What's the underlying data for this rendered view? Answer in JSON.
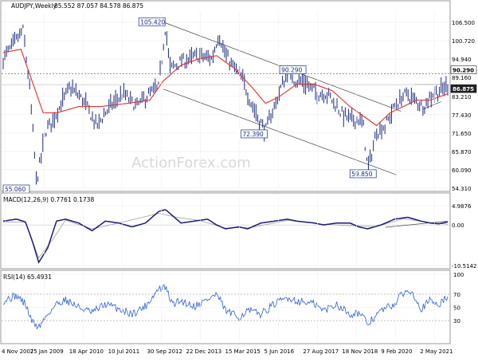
{
  "chart_data": [
    {
      "type": "candlestick",
      "title": "AUDJPY,Weekly",
      "ohlc": "85.552 87.057 84.578 86.875",
      "watermark": "ActionForex.com",
      "ylim": [
        54.31,
        110.0
      ],
      "yticks": [
        "106.500",
        "100.720",
        "94.940",
        "89.160",
        "83.210",
        "77.430",
        "71.650",
        "65.870",
        "60.090",
        "54.310"
      ],
      "xticks": [
        "4 Nov 2007",
        "25 Jan 2009",
        "18 Apr 2010",
        "10 Jul 2011",
        "30 Sep 2012",
        "22 Dec 2013",
        "15 Mar 2015",
        "5 Jun 2016",
        "27 Aug 2017",
        "18 Nov 2018",
        "9 Feb 2020",
        "2 May 2021"
      ],
      "price_path": [
        [
          0,
          95
        ],
        [
          0.025,
          100
        ],
        [
          0.045,
          104
        ],
        [
          0.06,
          85
        ],
        [
          0.075,
          56
        ],
        [
          0.095,
          72
        ],
        [
          0.12,
          78
        ],
        [
          0.15,
          86
        ],
        [
          0.18,
          82
        ],
        [
          0.21,
          74
        ],
        [
          0.24,
          80
        ],
        [
          0.27,
          84
        ],
        [
          0.3,
          80
        ],
        [
          0.33,
          84
        ],
        [
          0.35,
          86
        ],
        [
          0.365,
          105.4
        ],
        [
          0.375,
          92
        ],
        [
          0.4,
          94
        ],
        [
          0.44,
          96
        ],
        [
          0.47,
          95
        ],
        [
          0.485,
          103
        ],
        [
          0.5,
          96
        ],
        [
          0.52,
          92
        ],
        [
          0.54,
          88
        ],
        [
          0.555,
          82
        ],
        [
          0.575,
          76
        ],
        [
          0.59,
          72.4
        ],
        [
          0.61,
          80
        ],
        [
          0.625,
          86
        ],
        [
          0.64,
          90.3
        ],
        [
          0.66,
          88
        ],
        [
          0.675,
          88
        ],
        [
          0.69,
          86
        ],
        [
          0.71,
          84
        ],
        [
          0.73,
          84
        ],
        [
          0.76,
          78
        ],
        [
          0.78,
          76
        ],
        [
          0.8,
          76
        ],
        [
          0.81,
          74
        ],
        [
          0.82,
          59.85
        ],
        [
          0.84,
          72
        ],
        [
          0.86,
          74
        ],
        [
          0.88,
          80
        ],
        [
          0.905,
          84
        ],
        [
          0.925,
          82
        ],
        [
          0.945,
          80
        ],
        [
          0.965,
          84
        ],
        [
          0.985,
          85
        ],
        [
          1.0,
          86.875
        ]
      ],
      "ma_path": [
        [
          0,
          97
        ],
        [
          0.04,
          98
        ],
        [
          0.06,
          90
        ],
        [
          0.09,
          78
        ],
        [
          0.12,
          78
        ],
        [
          0.17,
          80
        ],
        [
          0.22,
          80
        ],
        [
          0.28,
          81
        ],
        [
          0.33,
          82
        ],
        [
          0.36,
          88
        ],
        [
          0.4,
          93
        ],
        [
          0.44,
          95
        ],
        [
          0.48,
          96
        ],
        [
          0.52,
          92
        ],
        [
          0.56,
          86
        ],
        [
          0.59,
          81
        ],
        [
          0.62,
          83
        ],
        [
          0.66,
          87
        ],
        [
          0.7,
          87
        ],
        [
          0.74,
          85
        ],
        [
          0.78,
          80
        ],
        [
          0.81,
          77
        ],
        [
          0.84,
          74
        ],
        [
          0.87,
          78
        ],
        [
          0.9,
          80
        ],
        [
          0.93,
          82
        ],
        [
          0.96,
          82
        ],
        [
          1.0,
          84
        ]
      ],
      "annotations": [
        "105.420",
        "90.290",
        "72.390",
        "59.850",
        "55.060"
      ],
      "price_tags": [
        {
          "label": "90.290",
          "value": 90.29,
          "dashed": true
        },
        {
          "label": "86.875",
          "value": 86.875,
          "dashed": false
        }
      ]
    },
    {
      "type": "line",
      "title": "MACD(12,26,9) 0.7761 0.1738",
      "ylim": [
        -10.5142,
        4.9876
      ],
      "yticks": [
        "4.9876",
        "0.00",
        "-10.5142"
      ],
      "macd_path": [
        [
          0,
          1.0
        ],
        [
          0.03,
          1.5
        ],
        [
          0.05,
          0.8
        ],
        [
          0.065,
          -4
        ],
        [
          0.08,
          -9.7
        ],
        [
          0.1,
          -6
        ],
        [
          0.12,
          1
        ],
        [
          0.14,
          1.5
        ],
        [
          0.17,
          0.5
        ],
        [
          0.2,
          -1.5
        ],
        [
          0.23,
          1
        ],
        [
          0.26,
          0.5
        ],
        [
          0.29,
          -0.5
        ],
        [
          0.32,
          0.5
        ],
        [
          0.35,
          3.5
        ],
        [
          0.365,
          4.0
        ],
        [
          0.38,
          2.5
        ],
        [
          0.4,
          0.5
        ],
        [
          0.43,
          1
        ],
        [
          0.46,
          1.5
        ],
        [
          0.48,
          0
        ],
        [
          0.5,
          -1
        ],
        [
          0.53,
          -0.5
        ],
        [
          0.55,
          -1
        ],
        [
          0.58,
          0.5
        ],
        [
          0.61,
          1
        ],
        [
          0.64,
          1.5
        ],
        [
          0.66,
          1
        ],
        [
          0.7,
          0.5
        ],
        [
          0.72,
          0
        ],
        [
          0.75,
          0.5
        ],
        [
          0.78,
          0.5
        ],
        [
          0.8,
          -0.5
        ],
        [
          0.82,
          -1
        ],
        [
          0.85,
          0
        ],
        [
          0.88,
          1.5
        ],
        [
          0.91,
          2
        ],
        [
          0.94,
          1
        ],
        [
          0.96,
          0.5
        ],
        [
          0.98,
          0.3
        ],
        [
          1.0,
          0.7761
        ]
      ],
      "signal_path": [
        [
          0,
          0.8
        ],
        [
          0.05,
          0.7
        ],
        [
          0.08,
          -8.5
        ],
        [
          0.11,
          -4
        ],
        [
          0.14,
          1.2
        ],
        [
          0.2,
          -1
        ],
        [
          0.26,
          0.5
        ],
        [
          0.35,
          3
        ],
        [
          0.39,
          2
        ],
        [
          0.44,
          1.2
        ],
        [
          0.5,
          -0.8
        ],
        [
          0.56,
          -0.6
        ],
        [
          0.64,
          1.2
        ],
        [
          0.72,
          0.2
        ],
        [
          0.8,
          -0.3
        ],
        [
          0.84,
          -0.4
        ],
        [
          0.9,
          1.6
        ],
        [
          0.95,
          0.8
        ],
        [
          1.0,
          0.1738
        ]
      ]
    },
    {
      "type": "line",
      "title": "RSI(14) 65.4931",
      "ylim": [
        0,
        100
      ],
      "yticks": [
        "100",
        "70",
        "50",
        "30"
      ],
      "rsi_path": [
        [
          0,
          60
        ],
        [
          0.03,
          68
        ],
        [
          0.05,
          55
        ],
        [
          0.065,
          28
        ],
        [
          0.08,
          20
        ],
        [
          0.1,
          40
        ],
        [
          0.12,
          55
        ],
        [
          0.14,
          62
        ],
        [
          0.17,
          50
        ],
        [
          0.2,
          42
        ],
        [
          0.23,
          55
        ],
        [
          0.26,
          48
        ],
        [
          0.29,
          40
        ],
        [
          0.32,
          52
        ],
        [
          0.35,
          78
        ],
        [
          0.365,
          80
        ],
        [
          0.38,
          55
        ],
        [
          0.4,
          60
        ],
        [
          0.43,
          52
        ],
        [
          0.46,
          62
        ],
        [
          0.48,
          70
        ],
        [
          0.5,
          45
        ],
        [
          0.53,
          35
        ],
        [
          0.55,
          45
        ],
        [
          0.58,
          40
        ],
        [
          0.61,
          55
        ],
        [
          0.64,
          65
        ],
        [
          0.66,
          60
        ],
        [
          0.7,
          55
        ],
        [
          0.72,
          45
        ],
        [
          0.75,
          55
        ],
        [
          0.78,
          40
        ],
        [
          0.8,
          42
        ],
        [
          0.82,
          25
        ],
        [
          0.85,
          45
        ],
        [
          0.88,
          55
        ],
        [
          0.9,
          72
        ],
        [
          0.92,
          75
        ],
        [
          0.94,
          48
        ],
        [
          0.96,
          60
        ],
        [
          0.98,
          55
        ],
        [
          1.0,
          65.4931
        ]
      ]
    }
  ]
}
